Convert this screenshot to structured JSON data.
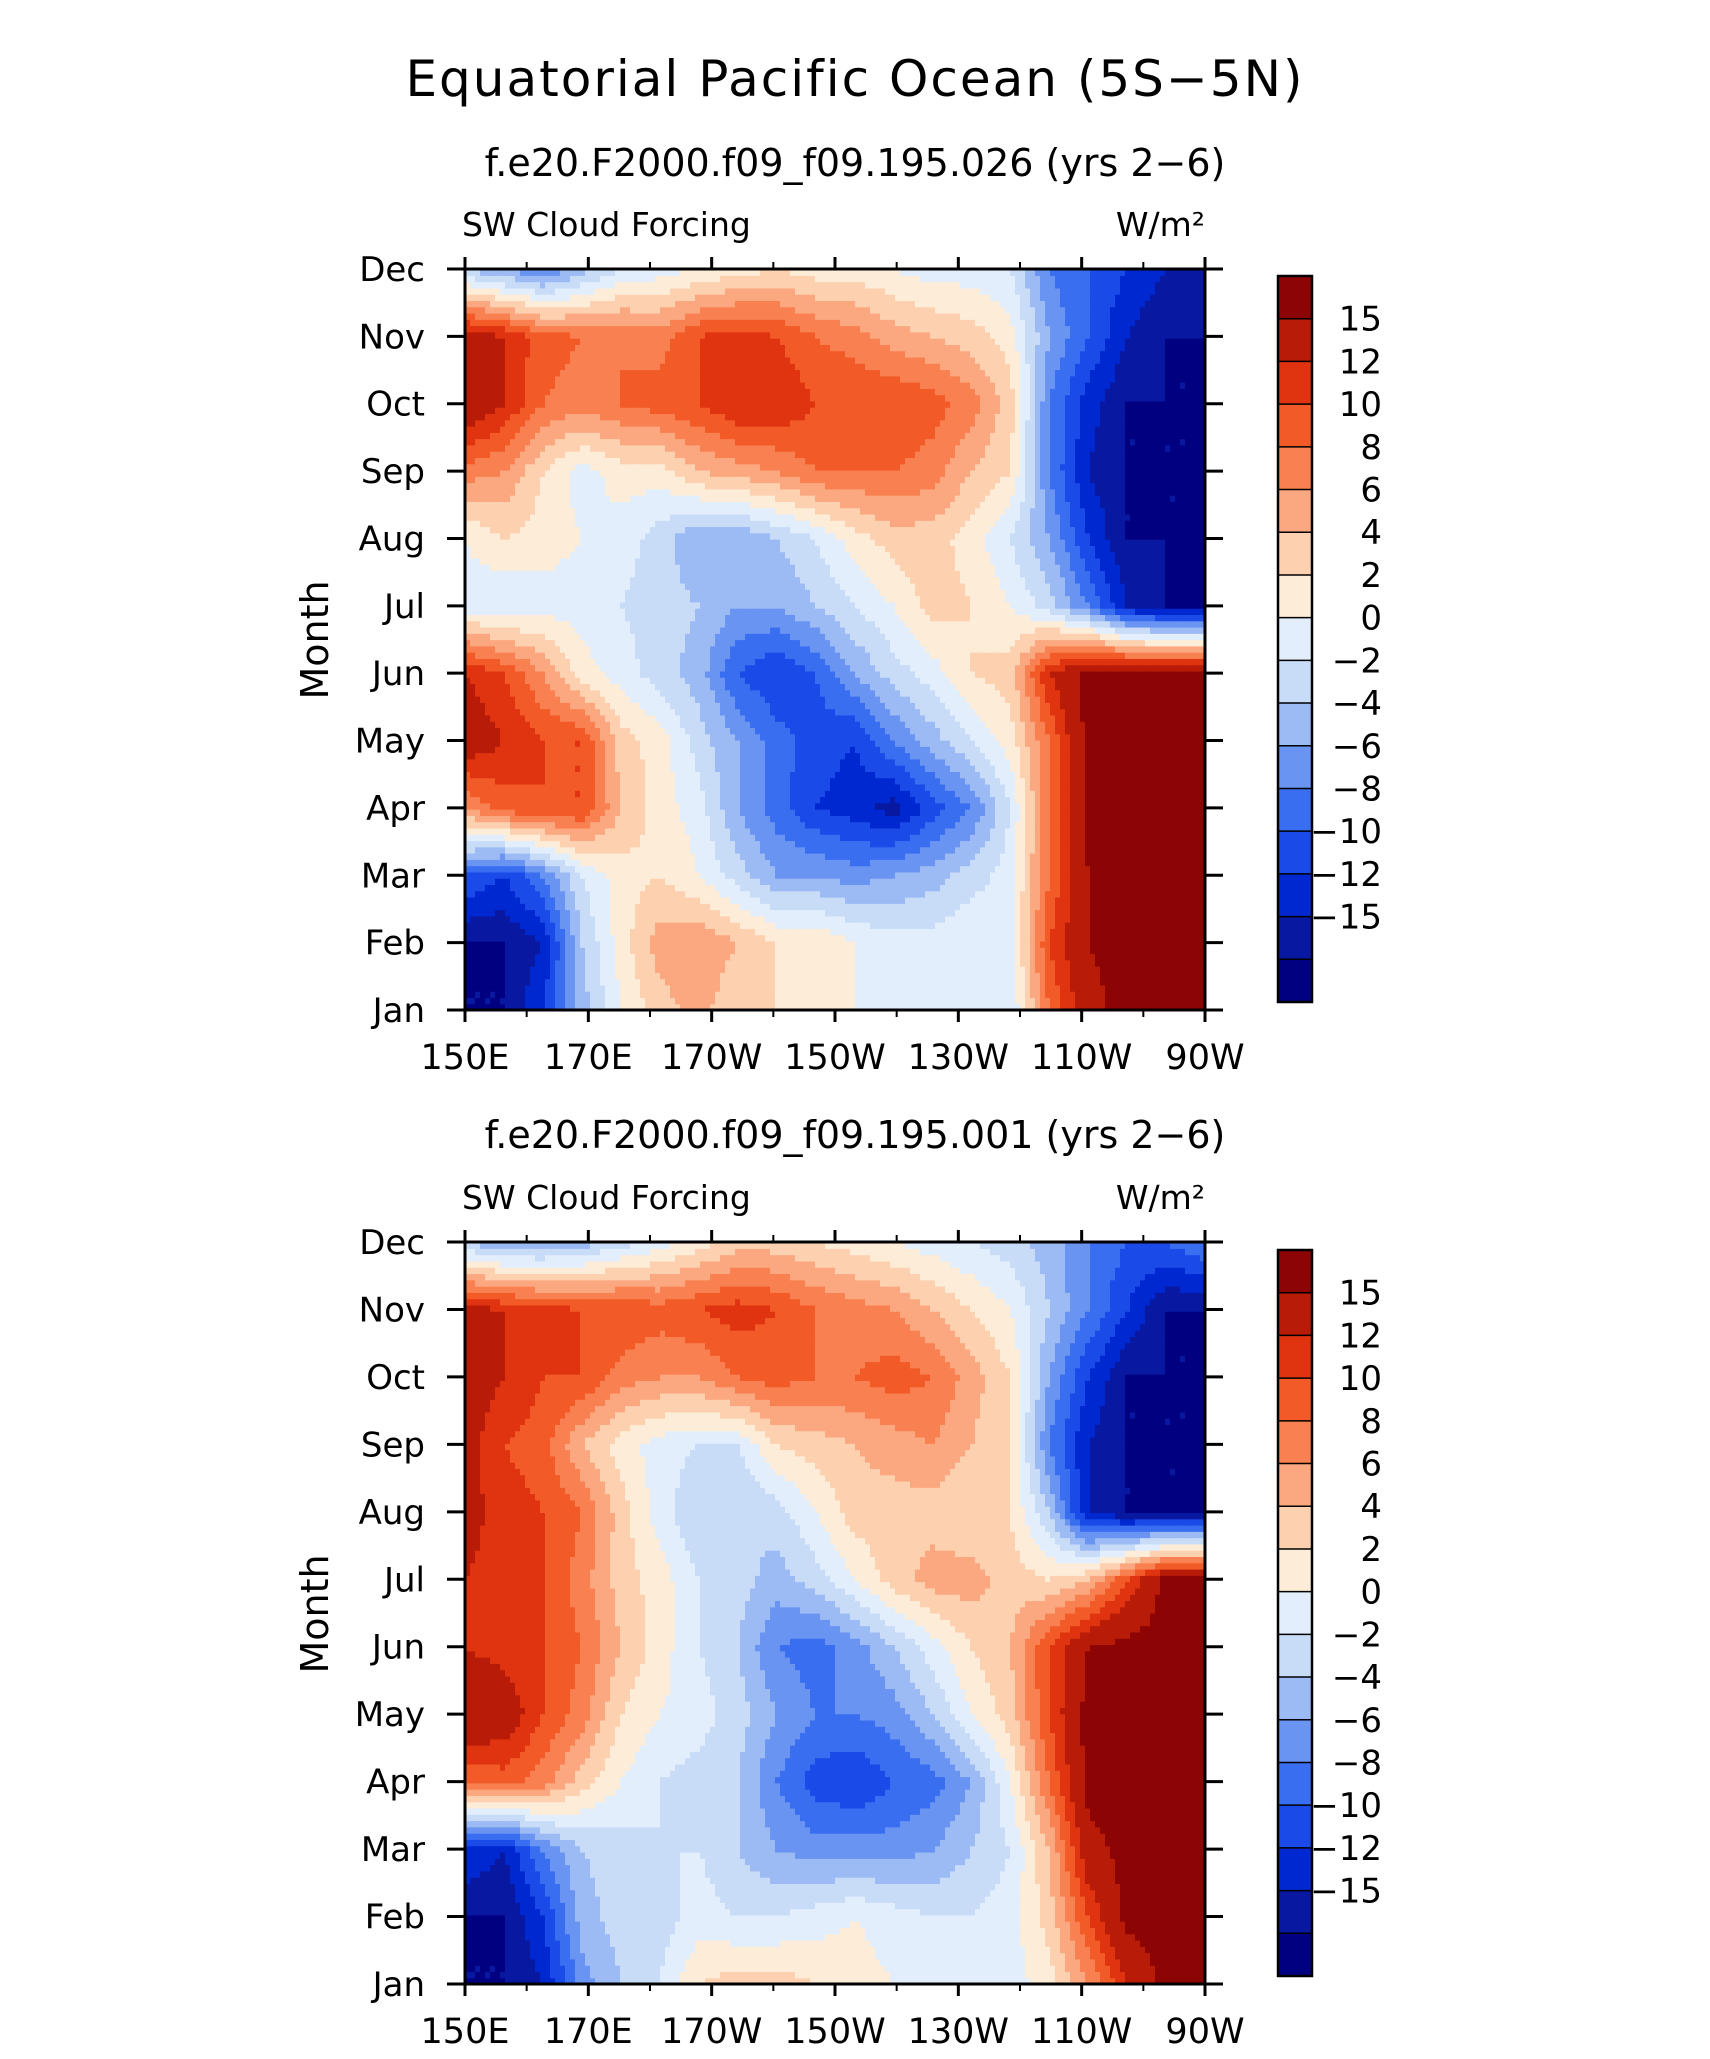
{
  "figure": {
    "title": "Equatorial Pacific Ocean (5S−5N)"
  },
  "colors": {
    "levels": [
      "#000080",
      "#0818a0",
      "#0028d0",
      "#1a4ae8",
      "#3a6ef0",
      "#6a94f2",
      "#9cbaf4",
      "#c8dcf8",
      "#e2eefc",
      "#fdecd8",
      "#fdd0b0",
      "#fba880",
      "#f98050",
      "#f25a28",
      "#e03410",
      "#b81c08",
      "#8c0404"
    ]
  },
  "chart_data": [
    {
      "type": "heatmap",
      "subtitle": "f.e20.F2000.f09_f09.195.026 (yrs 2−6)",
      "left_label": "SW Cloud Forcing",
      "right_label": "W/m²",
      "ylabel": "Month",
      "x_tick_labels": [
        "150E",
        "170E",
        "170W",
        "150W",
        "130W",
        "110W",
        "90W"
      ],
      "y_tick_labels": [
        "Jan",
        "Feb",
        "Mar",
        "Apr",
        "May",
        "Jun",
        "Jul",
        "Aug",
        "Sep",
        "Oct",
        "Nov",
        "Dec"
      ],
      "colorbar_labels": [
        "15",
        "12",
        "10",
        "8",
        "6",
        "4",
        "2",
        "0",
        "−2",
        "−4",
        "−6",
        "−8",
        "−10",
        "−12",
        "−15"
      ],
      "z": [
        [
          -16,
          -16,
          -12,
          -5,
          0,
          3,
          5,
          2,
          2,
          1,
          0,
          -1,
          -1,
          -1,
          -2,
          8,
          14,
          16,
          16,
          16
        ],
        [
          -16,
          -16,
          -14,
          -4,
          1,
          5,
          6,
          4,
          2,
          2,
          0,
          -1,
          -1,
          0,
          -1,
          10,
          15,
          16,
          16,
          16
        ],
        [
          -10,
          -12,
          -8,
          -2,
          1,
          2,
          0,
          -3,
          -6,
          -6,
          -7,
          -6,
          -5,
          -3,
          -1,
          8,
          15,
          16,
          16,
          16
        ],
        [
          6,
          9,
          10,
          10,
          4,
          1,
          -1,
          -6,
          -9,
          -12,
          -13,
          -15,
          -11,
          -8,
          -2,
          8,
          16,
          16,
          16,
          16
        ],
        [
          14,
          12,
          10,
          10,
          3,
          1,
          -3,
          -6,
          -9,
          -11,
          -12,
          -8,
          -5,
          -2,
          1,
          8,
          16,
          16,
          16,
          16
        ],
        [
          12,
          10,
          6,
          1,
          -1,
          -3,
          -5,
          -10,
          -12,
          -10,
          -6,
          -3,
          -1,
          2,
          3,
          12,
          16,
          16,
          16,
          16
        ],
        [
          -1,
          -2,
          -1,
          -1,
          -2,
          -3,
          -4,
          -6,
          -6,
          -4,
          -2,
          0,
          3,
          2,
          0,
          -3,
          -8,
          -14,
          -16,
          -16
        ],
        [
          0,
          2,
          1,
          0,
          -1,
          -3,
          -6,
          -6,
          -4,
          -2,
          1,
          3,
          3,
          1,
          -2,
          -6,
          -12,
          -16,
          -16,
          -16
        ],
        [
          7,
          6,
          2,
          -1,
          1,
          1,
          4,
          5,
          6,
          8,
          8,
          8,
          7,
          4,
          2,
          -8,
          -14,
          -16,
          -16,
          -16
        ],
        [
          15,
          12,
          8,
          7,
          8,
          9,
          10,
          12,
          12,
          10,
          10,
          10,
          9,
          7,
          3,
          -8,
          -13,
          -16,
          -16,
          -16
        ],
        [
          14,
          12,
          9,
          8,
          8,
          7,
          10,
          11,
          10,
          8,
          7,
          5,
          4,
          3,
          1,
          -6,
          -10,
          -14,
          -16,
          -16
        ],
        [
          -4,
          -6,
          -8,
          -5,
          -2,
          -1,
          0,
          1,
          2,
          1,
          1,
          0,
          -1,
          -1,
          -2,
          -8,
          -10,
          -12,
          -14,
          -15
        ]
      ],
      "levels": [
        -16,
        -14,
        -12,
        -10,
        -8,
        -6,
        -4,
        -2,
        0,
        2,
        4,
        6,
        8,
        10,
        12,
        15,
        16
      ],
      "zlim": [
        -17,
        17
      ]
    },
    {
      "type": "heatmap",
      "subtitle": "f.e20.F2000.f09_f09.195.001 (yrs 2−6)",
      "left_label": "SW Cloud Forcing",
      "right_label": "W/m²",
      "ylabel": "Month",
      "x_tick_labels": [
        "150E",
        "170E",
        "170W",
        "150W",
        "130W",
        "110W",
        "90W"
      ],
      "y_tick_labels": [
        "Jan",
        "Feb",
        "Mar",
        "Apr",
        "May",
        "Jun",
        "Jul",
        "Aug",
        "Sep",
        "Oct",
        "Nov",
        "Dec"
      ],
      "colorbar_labels": [
        "15",
        "12",
        "10",
        "8",
        "6",
        "4",
        "2",
        "0",
        "−2",
        "−4",
        "−6",
        "−8",
        "−10",
        "−12",
        "−15"
      ],
      "z": [
        [
          -16,
          -16,
          -14,
          -7,
          -4,
          -2,
          2,
          3,
          3,
          2,
          1,
          0,
          -1,
          -1,
          -1,
          1,
          6,
          12,
          16,
          16
        ],
        [
          -16,
          -16,
          -12,
          -5,
          -3,
          -3,
          -1,
          -2,
          -2,
          -1,
          0,
          -1,
          -2,
          -2,
          -1,
          3,
          10,
          16,
          16,
          16
        ],
        [
          -12,
          -14,
          -8,
          -4,
          -3,
          -2,
          -2,
          -4,
          -6,
          -7,
          -7,
          -7,
          -6,
          -4,
          -2,
          4,
          14,
          16,
          16,
          16
        ],
        [
          8,
          9,
          7,
          3,
          0,
          -2,
          -3,
          -4,
          -8,
          -11,
          -12,
          -10,
          -9,
          -6,
          0,
          8,
          16,
          16,
          16,
          16
        ],
        [
          15,
          14,
          10,
          7,
          2,
          0,
          -1,
          -3,
          -6,
          -8,
          -8,
          -7,
          -4,
          0,
          3,
          10,
          16,
          16,
          16,
          16
        ],
        [
          12,
          11,
          10,
          8,
          4,
          1,
          -2,
          -4,
          -8,
          -9,
          -7,
          -4,
          -1,
          2,
          4,
          10,
          15,
          16,
          16,
          16
        ],
        [
          12,
          11,
          10,
          7,
          3,
          1,
          -2,
          -3,
          -5,
          -3,
          0,
          3,
          5,
          5,
          3,
          2,
          4,
          10,
          16,
          16
        ],
        [
          13,
          11,
          10,
          8,
          3,
          -1,
          -4,
          -4,
          -3,
          0,
          3,
          3,
          3,
          2,
          2,
          -4,
          -14,
          -16,
          -16,
          -16
        ],
        [
          13,
          10,
          9,
          4,
          1,
          -1,
          -2,
          -2,
          2,
          3,
          4,
          5,
          6,
          4,
          2,
          -8,
          -14,
          -16,
          -16,
          -16
        ],
        [
          14,
          12,
          10,
          10,
          7,
          6,
          6,
          8,
          9,
          8,
          8,
          9,
          8,
          5,
          2,
          -6,
          -12,
          -16,
          -16,
          -16
        ],
        [
          13,
          12,
          11,
          10,
          10,
          9,
          10,
          11,
          10,
          8,
          7,
          6,
          4,
          2,
          0,
          -4,
          -8,
          -12,
          -16,
          -16
        ],
        [
          -4,
          -6,
          -6,
          -5,
          -3,
          -1,
          1,
          3,
          3,
          2,
          1,
          0,
          -1,
          -2,
          -3,
          -5,
          -8,
          -10,
          -10,
          -8
        ]
      ],
      "levels": [
        -16,
        -14,
        -12,
        -10,
        -8,
        -6,
        -4,
        -2,
        0,
        2,
        4,
        6,
        8,
        10,
        12,
        15,
        16
      ],
      "zlim": [
        -17,
        17
      ]
    }
  ]
}
